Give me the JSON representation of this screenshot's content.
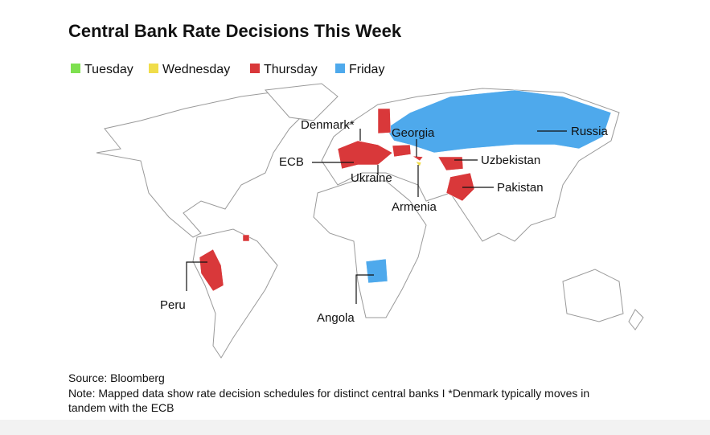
{
  "title": "Central Bank Rate Decisions This Week",
  "legend": [
    {
      "name": "Tuesday",
      "color": "#7ee04f"
    },
    {
      "name": "Wednesday",
      "color": "#f0dd4a"
    },
    {
      "name": "Thursday",
      "color": "#d9383a"
    },
    {
      "name": "Friday",
      "color": "#4ea9ec"
    }
  ],
  "regions": [
    {
      "label": "Russia",
      "color": "#4ea9ec"
    },
    {
      "label": "ECB",
      "color": "#d9383a"
    },
    {
      "label": "Denmark*",
      "color": "#d9383a"
    },
    {
      "label": "Ukraine",
      "color": "#d9383a"
    },
    {
      "label": "Georgia",
      "color": "#d9383a"
    },
    {
      "label": "Armenia",
      "color": "#f0dd4a"
    },
    {
      "label": "Uzbekistan",
      "color": "#d9383a"
    },
    {
      "label": "Pakistan",
      "color": "#d9383a"
    },
    {
      "label": "Peru",
      "color": "#d9383a"
    },
    {
      "label": "Angola",
      "color": "#4ea9ec"
    },
    {
      "color": "#d9383a"
    }
  ],
  "source": "Source: Bloomberg",
  "note": [
    "Note: Mapped data show rate decision schedules for distinct central banks I *Denmark typically moves in",
    "tandem with the ECB"
  ]
}
